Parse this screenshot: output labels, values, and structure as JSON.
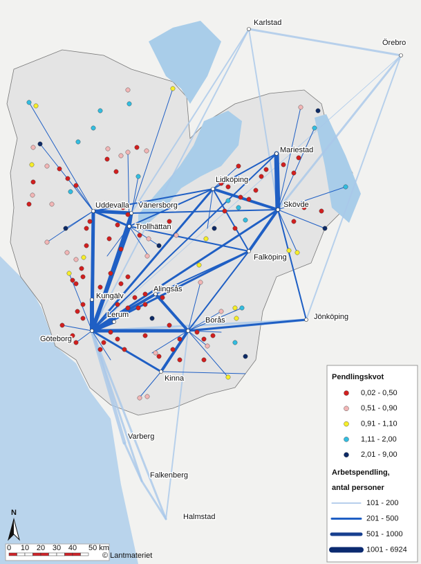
{
  "map": {
    "places": [
      "Karlstad",
      "Örebro",
      "Mariestad",
      "Lidköping",
      "Skövde",
      "Uddevalla",
      "Vänersborg",
      "Trollhättan",
      "Falköping",
      "Alingsås",
      "Kungälv",
      "Lerum",
      "Borås",
      "Jönköping",
      "Göteborg",
      "Kinna",
      "Varberg",
      "Falkenberg",
      "Halmstad"
    ],
    "legend": {
      "dot_title": "Pendlingskvot",
      "dot_classes": [
        "0,02 - 0,50",
        "0,51 - 0,90",
        "0,91 - 1,10",
        "1,11 - 2,00",
        "2,01 - 9,00"
      ],
      "line_title": [
        "Arbetspendling,",
        "antal personer"
      ],
      "line_classes": [
        "101 - 200",
        "201 - 500",
        "501 - 1000",
        "1001 - 6924"
      ]
    },
    "scale": {
      "ticks": [
        "0",
        "10",
        "20",
        "30",
        "40",
        "50 km"
      ]
    },
    "north": "N",
    "credit": "© Lantmateriet"
  }
}
